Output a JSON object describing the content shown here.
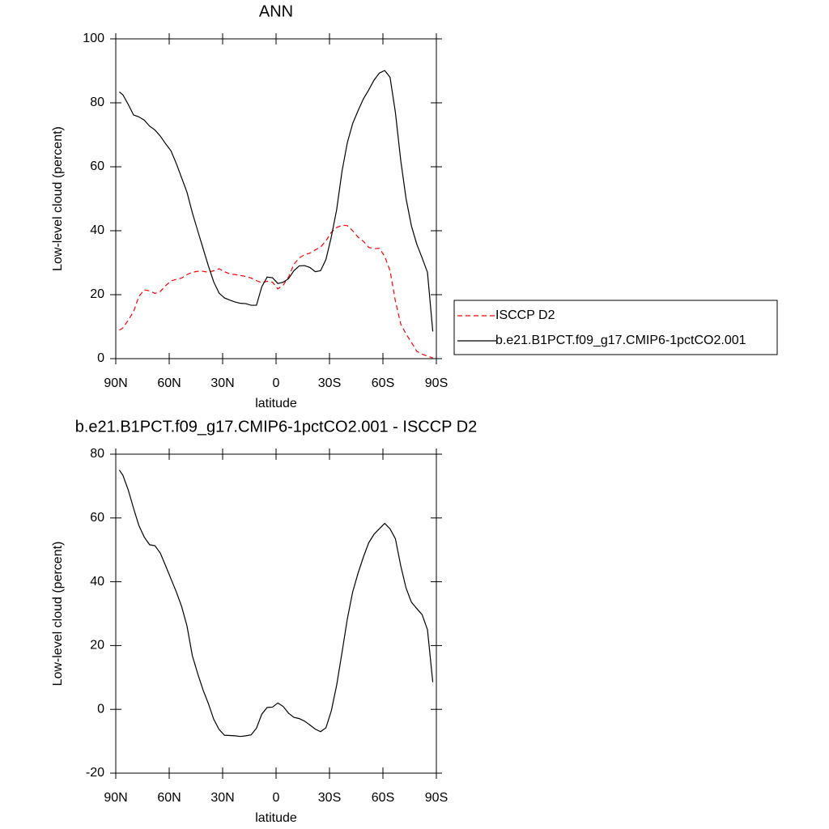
{
  "chart_data": [
    {
      "type": "line",
      "title": "ANN",
      "xlabel": "latitude",
      "ylabel": "Low-level cloud (percent)",
      "x": [
        88,
        86,
        83,
        80,
        77,
        74,
        71,
        68,
        65,
        62,
        59,
        56,
        53,
        50,
        47,
        44,
        41,
        38,
        35,
        32,
        29,
        26,
        23,
        20,
        17,
        14,
        11,
        8,
        5,
        2,
        -1,
        -4,
        -7,
        -10,
        -13,
        -16,
        -19,
        -22,
        -25,
        -28,
        -31,
        -34,
        -37,
        -40,
        -43,
        -46,
        -49,
        -52,
        -55,
        -58,
        -61,
        -64,
        -67,
        -70,
        -73,
        -76,
        -79,
        -82,
        -85,
        -88
      ],
      "series": [
        {
          "name": "ISCCP D2",
          "color": "#ff0000",
          "dash": true,
          "values": [
            8.9,
            9.6,
            12,
            14.7,
            19.5,
            21.5,
            21.2,
            20.4,
            21,
            22.8,
            24.3,
            24.8,
            25.2,
            26.3,
            27,
            27.3,
            27.3,
            27,
            27.5,
            28.1,
            27.2,
            26.5,
            26.3,
            26,
            25.7,
            25.2,
            24.4,
            23.7,
            24.2,
            23.9,
            21.8,
            23,
            25.5,
            29.5,
            31.5,
            32.5,
            33,
            34,
            34.9,
            36.8,
            39.5,
            41,
            41.7,
            41.6,
            40,
            38,
            36.7,
            34.8,
            34.4,
            34.5,
            32,
            27.5,
            18,
            10.8,
            7.7,
            5.1,
            2.3,
            1.4,
            0.8,
            0.2
          ]
        },
        {
          "name": "b.e21.B1PCT.f09_g17.CMIP6-1pctCO2.001",
          "color": "#000000",
          "dash": false,
          "values": [
            83.4,
            82.5,
            79.5,
            76.2,
            75.6,
            74.6,
            72.7,
            71.5,
            69.6,
            67.2,
            65,
            61,
            56.5,
            52,
            45.6,
            40,
            34.5,
            29,
            24,
            20.5,
            19,
            18.3,
            17.7,
            17.3,
            17.2,
            16.7,
            16.7,
            22.5,
            25.5,
            25.3,
            23.5,
            23.9,
            25,
            27.5,
            29,
            29.1,
            28.5,
            27.2,
            27.5,
            31,
            38,
            46.5,
            58.5,
            67.5,
            73.5,
            77.5,
            81.2,
            84,
            87.1,
            89.3,
            90.1,
            88,
            77,
            62,
            50,
            41.5,
            35.8,
            31.5,
            27,
            8.5
          ]
        }
      ],
      "xlim": [
        90,
        -90
      ],
      "xticks": [
        {
          "value": 90,
          "label": "90N"
        },
        {
          "value": 60,
          "label": "60N"
        },
        {
          "value": 30,
          "label": "30N"
        },
        0,
        {
          "value": -30,
          "label": "30S"
        },
        {
          "value": -60,
          "label": "60S"
        },
        {
          "value": -90,
          "label": "90S"
        }
      ],
      "ylim": [
        0,
        100
      ],
      "yticks": [
        0,
        20,
        40,
        60,
        80,
        100
      ],
      "grid": false,
      "legend": "right"
    },
    {
      "type": "line",
      "title": "b.e21.B1PCT.f09_g17.CMIP6-1pctCO2.001 - ISCCP D2",
      "xlabel": "latitude",
      "ylabel": "Low-level cloud (percent)",
      "x": [
        88,
        86,
        83,
        80,
        77,
        74,
        71,
        68,
        65,
        62,
        59,
        56,
        53,
        50,
        47,
        44,
        41,
        38,
        35,
        32,
        29,
        26,
        23,
        20,
        17,
        14,
        11,
        8,
        5,
        2,
        -1,
        -4,
        -7,
        -10,
        -13,
        -16,
        -19,
        -22,
        -25,
        -28,
        -31,
        -34,
        -37,
        -40,
        -43,
        -46,
        -49,
        -52,
        -55,
        -58,
        -61,
        -64,
        -67,
        -70,
        -73,
        -76,
        -79,
        -82,
        -85,
        -88
      ],
      "series": [
        {
          "color": "#000000",
          "dash": false,
          "values": [
            75,
            73.4,
            68.8,
            63,
            57.6,
            54,
            51.6,
            51.3,
            49,
            45,
            40.9,
            36.8,
            32.2,
            26.1,
            16.8,
            11.2,
            6.1,
            1.8,
            -3.1,
            -6.3,
            -8.1,
            -8.2,
            -8.3,
            -8.5,
            -8.3,
            -8,
            -5.9,
            -1.5,
            0.6,
            0.7,
            2,
            0.9,
            -1.2,
            -2.5,
            -2.9,
            -3.7,
            -4.9,
            -6.2,
            -7,
            -5.8,
            -0.5,
            7.5,
            17.7,
            28.3,
            36.8,
            42.6,
            47.7,
            52.2,
            54.9,
            56.6,
            58.3,
            56.6,
            53.5,
            45,
            38,
            33.6,
            31.6,
            29.7,
            25,
            8.5
          ]
        }
      ],
      "xlim": [
        90,
        -90
      ],
      "xticks": [
        {
          "value": 90,
          "label": "90N"
        },
        {
          "value": 60,
          "label": "60N"
        },
        {
          "value": 30,
          "label": "30N"
        },
        0,
        {
          "value": -30,
          "label": "30S"
        },
        {
          "value": -60,
          "label": "60S"
        },
        {
          "value": -90,
          "label": "90S"
        }
      ],
      "ylim": [
        -20,
        80
      ],
      "yticks": [
        -20,
        0,
        20,
        40,
        60,
        80
      ],
      "grid": false
    }
  ]
}
